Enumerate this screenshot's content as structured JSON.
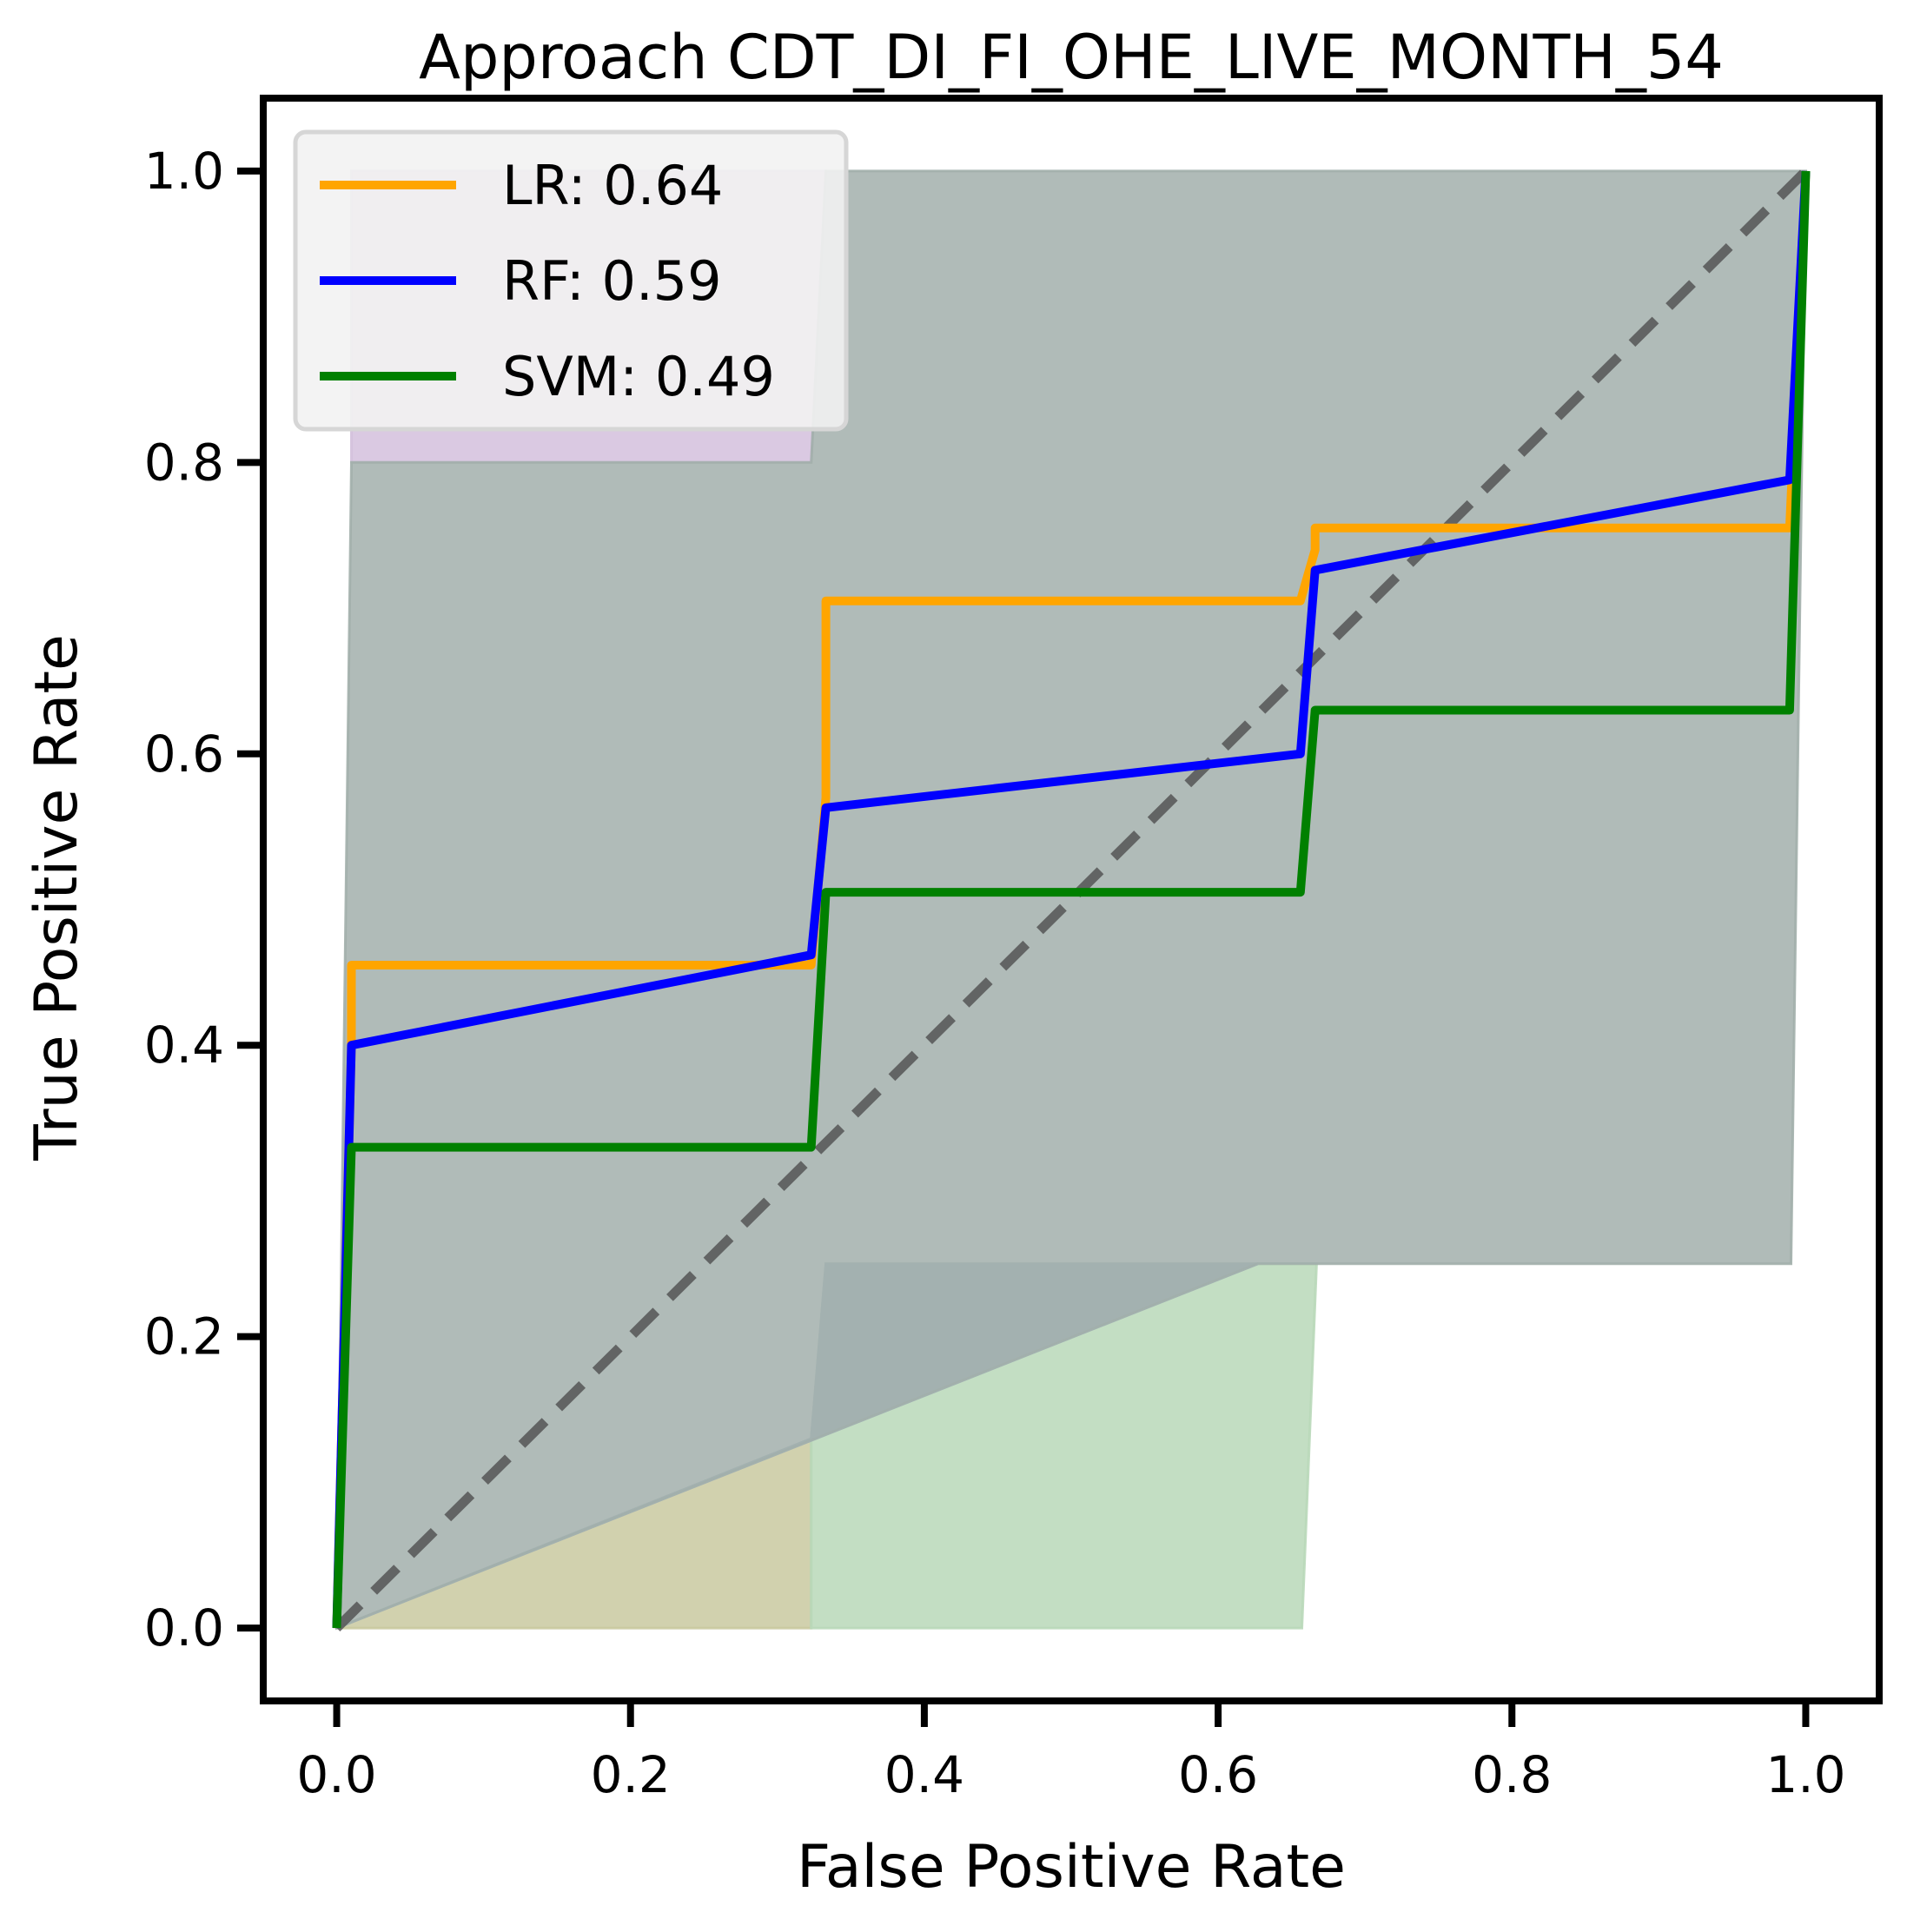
{
  "chart_data": {
    "type": "line",
    "title": "Approach CDT_DI_FI_OHE_LIVE_MONTH_54",
    "xlabel": "False Positive Rate",
    "ylabel": "True Positive Rate",
    "xlim": [
      -0.05,
      1.05
    ],
    "ylim": [
      -0.05,
      1.05
    ],
    "xticks": [
      0.0,
      0.2,
      0.4,
      0.6,
      0.8,
      1.0
    ],
    "yticks": [
      0.0,
      0.2,
      0.4,
      0.6,
      0.8,
      1.0
    ],
    "xtick_labels": [
      "0.0",
      "0.2",
      "0.4",
      "0.6",
      "0.8",
      "1.0"
    ],
    "ytick_labels": [
      "0.0",
      "0.2",
      "0.4",
      "0.6",
      "0.8",
      "1.0"
    ],
    "grid": false,
    "legend_position": "upper-left",
    "series": [
      {
        "name": "LR: 0.64",
        "color": "#ffa500",
        "x": [
          0.0,
          0.01,
          0.01,
          0.323,
          0.333,
          0.333,
          0.656,
          0.666,
          0.666,
          0.989,
          1.0
        ],
        "y": [
          0.0,
          0.4,
          0.455,
          0.455,
          0.57,
          0.705,
          0.705,
          0.74,
          0.755,
          0.755,
          1.0
        ],
        "band": {
          "color": "#9bb04e",
          "x": [
            0.0,
            0.005,
            0.33,
            0.99,
            1.0,
            1.0,
            0.66,
            0.33,
            0.0
          ],
          "lower": [
            0.0,
            0.0,
            0.0,
            0.0,
            0.0,
            1.0,
            1.0,
            1.0,
            1.0
          ],
          "upper": []
        }
      },
      {
        "name": "RF: 0.59",
        "color": "#0000ff",
        "x": [
          0.0,
          0.01,
          0.323,
          0.333,
          0.656,
          0.666,
          0.989,
          1.0
        ],
        "y": [
          0.0,
          0.4,
          0.462,
          0.563,
          0.6,
          0.726,
          0.788,
          1.0
        ],
        "band": {
          "color": "#6f9fd8"
        }
      },
      {
        "name": "SVM: 0.49",
        "color": "#008000",
        "x": [
          0.0,
          0.01,
          0.323,
          0.333,
          0.656,
          0.666,
          0.989,
          1.0
        ],
        "y": [
          0.0,
          0.33,
          0.33,
          0.505,
          0.505,
          0.63,
          0.63,
          1.0
        ],
        "band": {
          "color": "#8fcf8f"
        }
      }
    ],
    "baseline": {
      "x": [
        0.0,
        1.0
      ],
      "y": [
        0.0,
        1.0
      ],
      "style": "dashed",
      "color": "#555555"
    },
    "bands": [
      {
        "color": "#c9c9a0",
        "polygon": [
          [
            0.0,
            0.0
          ],
          [
            0.323,
            0.0
          ],
          [
            0.323,
            0.13
          ],
          [
            0.0,
            0.0
          ]
        ]
      },
      {
        "color": "#b9d8b9",
        "polygon": [
          [
            0.323,
            0.0
          ],
          [
            0.657,
            0.0
          ],
          [
            0.667,
            0.25
          ],
          [
            0.333,
            0.25
          ],
          [
            0.323,
            0.13
          ]
        ]
      },
      {
        "color": "#a4b8c8",
        "polygon": [
          [
            0.323,
            0.13
          ],
          [
            0.333,
            0.25
          ],
          [
            0.627,
            0.25
          ],
          [
            0.0,
            0.0
          ]
        ]
      },
      {
        "color": "#d3c0dd",
        "polygon": [
          [
            0.01,
            0.8
          ],
          [
            0.01,
            1.0
          ],
          [
            0.333,
            1.0
          ],
          [
            0.323,
            0.8
          ]
        ]
      },
      {
        "color": "#a2afab",
        "polygon": [
          [
            0.0,
            0.0
          ],
          [
            0.01,
            0.8
          ],
          [
            0.323,
            0.8
          ],
          [
            0.333,
            1.0
          ],
          [
            1.0,
            1.0
          ],
          [
            0.99,
            0.25
          ],
          [
            0.627,
            0.25
          ],
          [
            0.0,
            0.0
          ]
        ]
      }
    ]
  }
}
